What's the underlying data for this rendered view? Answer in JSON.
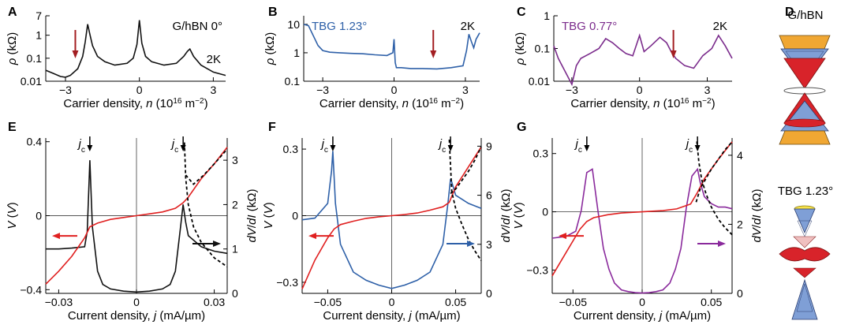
{
  "chart_data": [
    {
      "panel": "A",
      "type": "line",
      "scale": "log",
      "label": "G/hBN 0°",
      "temperature": "2K",
      "xlabel": "Carrier density, n (10^16 m^-2)",
      "ylabel": "ρ (kΩ)",
      "xlim": [
        -3.8,
        3.5
      ],
      "ylim": [
        0.01,
        7
      ],
      "xticks": [
        {
          "v": -3,
          "t": "−3"
        },
        {
          "v": 0,
          "t": "0"
        },
        {
          "v": 3,
          "t": "3"
        }
      ],
      "yticks": [
        {
          "v": 0.01,
          "t": "0.01"
        },
        {
          "v": 0.1,
          "t": "0.1"
        },
        {
          "v": 1,
          "t": "1"
        },
        {
          "v": 7,
          "t": "7"
        }
      ],
      "color": "#111111",
      "series": [
        {
          "name": "G/hBN 0°",
          "x": [
            -3.8,
            -3.5,
            -3.2,
            -3.0,
            -2.8,
            -2.5,
            -2.3,
            -2.2,
            -2.1,
            -2.0,
            -1.9,
            -1.7,
            -1.4,
            -1.0,
            -0.5,
            -0.25,
            -0.1,
            0,
            0.1,
            0.25,
            0.5,
            1.0,
            1.5,
            1.8,
            1.95,
            2.05,
            2.2,
            2.5,
            3.0,
            3.5
          ],
          "y": [
            0.03,
            0.022,
            0.016,
            0.015,
            0.018,
            0.035,
            0.12,
            0.5,
            3.0,
            1.0,
            0.35,
            0.12,
            0.07,
            0.05,
            0.06,
            0.1,
            0.4,
            4.5,
            0.45,
            0.12,
            0.07,
            0.05,
            0.06,
            0.12,
            0.2,
            0.25,
            0.12,
            0.05,
            0.025,
            0.018
          ]
        }
      ],
      "arrows": [
        {
          "x": -2.6,
          "color": "#a31e22"
        }
      ]
    },
    {
      "panel": "B",
      "type": "line",
      "scale": "log",
      "label": "TBG 1.23°",
      "temperature": "2K",
      "xlabel": "Carrier density, n (10^16 m^-2)",
      "ylabel": "ρ (kΩ)",
      "xlim": [
        -3.8,
        3.6
      ],
      "ylim": [
        0.1,
        20
      ],
      "xticks": [
        {
          "v": -3,
          "t": "−3"
        },
        {
          "v": 0,
          "t": "0"
        },
        {
          "v": 3,
          "t": "3"
        }
      ],
      "yticks": [
        {
          "v": 0.1,
          "t": "0.1"
        },
        {
          "v": 1,
          "t": "1"
        },
        {
          "v": 10,
          "t": "10"
        }
      ],
      "color": "#2e60a8",
      "series": [
        {
          "name": "TBG 1.23°",
          "x": [
            -3.8,
            -3.6,
            -3.4,
            -3.2,
            -3.0,
            -2.7,
            -2.3,
            -1.8,
            -1.3,
            -0.8,
            -0.3,
            -0.05,
            0,
            0.05,
            0.1,
            0.3,
            0.7,
            1.2,
            1.8,
            2.4,
            2.9,
            3.05,
            3.15,
            3.25,
            3.35,
            3.45,
            3.6
          ],
          "y": [
            10,
            9,
            4,
            1.8,
            1.2,
            1.05,
            1.0,
            0.95,
            0.92,
            0.85,
            0.8,
            1.0,
            3.0,
            0.45,
            0.3,
            0.3,
            0.28,
            0.28,
            0.27,
            0.3,
            0.35,
            1.2,
            4.5,
            2.5,
            1.5,
            3.0,
            5.0
          ]
        }
      ],
      "arrows": [
        {
          "x": 1.65,
          "color": "#a31e22"
        }
      ]
    },
    {
      "panel": "C",
      "type": "line",
      "scale": "log",
      "label": "TBG 0.77°",
      "temperature": "2K",
      "xlabel": "Carrier density, n (10^16 m^-2)",
      "ylabel": "ρ (kΩ)",
      "xlim": [
        -3.8,
        4.1
      ],
      "ylim": [
        0.01,
        1
      ],
      "xticks": [
        {
          "v": -3,
          "t": "−3"
        },
        {
          "v": 0,
          "t": "0"
        },
        {
          "v": 3,
          "t": "3"
        }
      ],
      "yticks": [
        {
          "v": 0.01,
          "t": "0.01"
        },
        {
          "v": 0.1,
          "t": "0.1"
        },
        {
          "v": 1,
          "t": "1"
        }
      ],
      "color": "#7b2c8c",
      "series": [
        {
          "name": "TBG 0.77°",
          "x": [
            -3.8,
            -3.6,
            -3.3,
            -3.0,
            -2.8,
            -2.6,
            -2.2,
            -1.8,
            -1.5,
            -1.2,
            -0.9,
            -0.6,
            -0.3,
            0,
            0.2,
            0.5,
            0.9,
            1.2,
            1.4,
            1.6,
            2.0,
            2.4,
            2.8,
            3.2,
            3.5,
            3.8,
            4.1
          ],
          "y": [
            0.12,
            0.05,
            0.02,
            0.008,
            0.03,
            0.05,
            0.07,
            0.1,
            0.2,
            0.15,
            0.1,
            0.07,
            0.06,
            0.25,
            0.08,
            0.12,
            0.22,
            0.15,
            0.08,
            0.05,
            0.03,
            0.025,
            0.06,
            0.1,
            0.25,
            0.12,
            0.05
          ]
        }
      ],
      "arrows": [
        {
          "x": 1.5,
          "color": "#a31e22"
        }
      ]
    },
    {
      "panel": "E",
      "type": "line",
      "dual_axis": true,
      "xlabel": "Current density, j (mA/µm)",
      "ylabel": "V (V)",
      "ylabel2": "dV/dI (kΩ)",
      "xlim": [
        -0.035,
        0.035
      ],
      "ylim": [
        -0.42,
        0.42
      ],
      "ylim2": [
        0,
        3.5
      ],
      "xticks": [
        {
          "v": -0.03,
          "t": "−0.03"
        },
        {
          "v": 0,
          "t": "0"
        },
        {
          "v": 0.03,
          "t": "0.03"
        }
      ],
      "yticks": [
        {
          "v": -0.4,
          "t": "−0.4"
        },
        {
          "v": 0,
          "t": "0"
        },
        {
          "v": 0.4,
          "t": "0.4"
        }
      ],
      "y2ticks": [
        {
          "v": 0,
          "t": "0"
        },
        {
          "v": 1,
          "t": "1"
        },
        {
          "v": 2,
          "t": "2"
        },
        {
          "v": 3,
          "t": "3"
        }
      ],
      "jc_label": "j",
      "jc_sub": "c",
      "jc_positions": [
        -0.018,
        0.018
      ],
      "v_curve": {
        "color": "#e02020",
        "x": [
          -0.035,
          -0.03,
          -0.025,
          -0.02,
          -0.018,
          -0.015,
          -0.01,
          -0.005,
          0,
          0.005,
          0.01,
          0.015,
          0.018,
          0.02,
          0.025,
          0.03,
          0.035
        ],
        "y": [
          -0.37,
          -0.3,
          -0.22,
          -0.12,
          -0.06,
          -0.04,
          -0.02,
          -0.01,
          0,
          0.01,
          0.02,
          0.04,
          0.07,
          0.1,
          0.2,
          0.28,
          0.37
        ]
      },
      "didv_curve": {
        "color": "#111111",
        "x": [
          -0.035,
          -0.03,
          -0.025,
          -0.02,
          -0.019,
          -0.018,
          -0.017,
          -0.015,
          -0.013,
          -0.01,
          -0.005,
          0,
          0.005,
          0.01,
          0.013,
          0.015,
          0.017,
          0.018,
          0.019,
          0.02,
          0.025,
          0.03,
          0.035
        ],
        "y": [
          1.0,
          1.0,
          1.02,
          1.05,
          1.4,
          3.0,
          1.5,
          0.5,
          0.2,
          0.1,
          0.05,
          0.03,
          0.05,
          0.1,
          0.2,
          0.5,
          1.5,
          2.0,
          1.6,
          1.3,
          1.05,
          0.95,
          0.9
        ]
      },
      "fit_curves": [
        {
          "x": [
            0.019,
            0.022,
            0.026,
            0.03,
            0.035
          ],
          "y": [
            0.22,
            0.17,
            0.22,
            0.28,
            0.36
          ]
        },
        {
          "x": [
            0.0185,
            0.019,
            0.02,
            0.022,
            0.025,
            0.03,
            0.035
          ],
          "y": [
            3.4,
            2.6,
            2.0,
            1.5,
            1.15,
            0.8,
            0.6
          ],
          "axis": "y2"
        }
      ],
      "side_arrows": [
        {
          "dir": "left",
          "color": "#e02020"
        },
        {
          "dir": "right",
          "color": "#111111"
        }
      ]
    },
    {
      "panel": "F",
      "type": "line",
      "dual_axis": true,
      "xlabel": "Current density, j (mA/µm)",
      "ylabel": "V (V)",
      "ylabel2": "dV/dI (kΩ)",
      "xlim": [
        -0.07,
        0.07
      ],
      "ylim": [
        -0.35,
        0.35
      ],
      "ylim2": [
        0,
        9.5
      ],
      "xticks": [
        {
          "v": -0.05,
          "t": "−0.05"
        },
        {
          "v": 0,
          "t": "0"
        },
        {
          "v": 0.05,
          "t": "0.05"
        }
      ],
      "yticks": [
        {
          "v": -0.3,
          "t": "−0.3"
        },
        {
          "v": 0,
          "t": "0"
        },
        {
          "v": 0.3,
          "t": "0.3"
        }
      ],
      "y2ticks": [
        {
          "v": 0,
          "t": "0"
        },
        {
          "v": 3,
          "t": "3"
        },
        {
          "v": 6,
          "t": "6"
        },
        {
          "v": 9,
          "t": "9"
        }
      ],
      "jc_label": "j",
      "jc_sub": "c",
      "jc_positions": [
        -0.046,
        0.046
      ],
      "v_curve": {
        "color": "#e02020",
        "x": [
          -0.07,
          -0.06,
          -0.05,
          -0.045,
          -0.04,
          -0.03,
          -0.02,
          -0.01,
          0,
          0.01,
          0.02,
          0.03,
          0.04,
          0.045,
          0.05,
          0.06,
          0.07
        ],
        "y": [
          -0.33,
          -0.2,
          -0.1,
          -0.06,
          -0.04,
          -0.025,
          -0.012,
          -0.005,
          0,
          0.005,
          0.012,
          0.025,
          0.04,
          0.06,
          0.13,
          0.22,
          0.31
        ]
      },
      "didv_curve": {
        "color": "#2e60a8",
        "x": [
          -0.07,
          -0.06,
          -0.05,
          -0.047,
          -0.046,
          -0.044,
          -0.04,
          -0.03,
          -0.02,
          -0.01,
          0,
          0.01,
          0.02,
          0.03,
          0.04,
          0.044,
          0.046,
          0.047,
          0.05,
          0.06,
          0.07
        ],
        "y": [
          4.5,
          4.6,
          5.5,
          7.5,
          8.7,
          5.5,
          3.0,
          1.3,
          0.8,
          0.5,
          0.3,
          0.5,
          0.8,
          1.3,
          3.0,
          5.5,
          7.0,
          6.8,
          6.0,
          5.5,
          5.2
        ]
      },
      "fit_curves": [
        {
          "x": [
            0.046,
            0.05,
            0.055,
            0.06,
            0.065,
            0.07
          ],
          "y": [
            0.1,
            0.12,
            0.16,
            0.2,
            0.25,
            0.31
          ]
        },
        {
          "x": [
            0.045,
            0.047,
            0.05,
            0.055,
            0.06,
            0.065,
            0.07
          ],
          "y": [
            9.4,
            6.2,
            5.2,
            4.2,
            3.3,
            2.6,
            2.0
          ],
          "axis": "y2"
        }
      ],
      "side_arrows": [
        {
          "dir": "left",
          "color": "#e02020"
        },
        {
          "dir": "right",
          "color": "#2e60a8"
        }
      ]
    },
    {
      "panel": "G",
      "type": "line",
      "dual_axis": true,
      "xlabel": "Current density, j (mA/µm)",
      "ylabel": "V (V)",
      "ylabel2": "dV/dI (kΩ)",
      "xlim": [
        -0.065,
        0.065
      ],
      "ylim": [
        -0.42,
        0.38
      ],
      "ylim2": [
        0,
        4.5
      ],
      "xticks": [
        {
          "v": -0.05,
          "t": "−0.05"
        },
        {
          "v": 0,
          "t": "0"
        },
        {
          "v": 0.05,
          "t": "0.05"
        }
      ],
      "yticks": [
        {
          "v": -0.3,
          "t": "−0.3"
        },
        {
          "v": 0,
          "t": "0"
        },
        {
          "v": 0.3,
          "t": "0.3"
        }
      ],
      "y2ticks": [
        {
          "v": 0,
          "t": "0"
        },
        {
          "v": 2,
          "t": "2"
        },
        {
          "v": 4,
          "t": "4"
        }
      ],
      "jc_label": "j",
      "jc_sub": "c",
      "jc_positions": [
        -0.04,
        0.04
      ],
      "v_curve": {
        "color": "#e02020",
        "x": [
          -0.065,
          -0.055,
          -0.045,
          -0.04,
          -0.035,
          -0.025,
          -0.015,
          -0.005,
          0,
          0.005,
          0.015,
          0.025,
          0.035,
          0.04,
          0.045,
          0.055,
          0.065
        ],
        "y": [
          -0.33,
          -0.21,
          -0.09,
          -0.05,
          -0.03,
          -0.015,
          -0.006,
          -0.002,
          0,
          0.002,
          0.006,
          0.015,
          0.04,
          0.1,
          0.17,
          0.27,
          0.36
        ]
      },
      "didv_curve": {
        "color": "#8a2a9c",
        "x": [
          -0.065,
          -0.055,
          -0.048,
          -0.044,
          -0.04,
          -0.036,
          -0.032,
          -0.028,
          -0.024,
          -0.02,
          -0.015,
          -0.01,
          -0.005,
          0,
          0.005,
          0.01,
          0.015,
          0.02,
          0.024,
          0.028,
          0.032,
          0.036,
          0.04,
          0.042,
          0.045,
          0.05,
          0.055,
          0.06,
          0.065
        ],
        "y": [
          1.6,
          1.65,
          1.8,
          2.4,
          3.5,
          3.6,
          2.4,
          1.3,
          0.7,
          0.3,
          0.1,
          0.05,
          0.02,
          0.01,
          0.02,
          0.05,
          0.1,
          0.3,
          0.7,
          1.3,
          2.5,
          3.4,
          3.6,
          3.2,
          2.8,
          2.6,
          2.5,
          2.5,
          2.45
        ]
      },
      "fit_curves": [
        {
          "x": [
            0.039,
            0.042,
            0.046,
            0.05,
            0.055,
            0.06,
            0.065
          ],
          "y": [
            0.05,
            0.12,
            0.17,
            0.22,
            0.27,
            0.32,
            0.36
          ]
        },
        {
          "x": [
            0.0395,
            0.041,
            0.043,
            0.046,
            0.05,
            0.055,
            0.06,
            0.065
          ],
          "y": [
            4.4,
            3.8,
            3.3,
            2.9,
            2.5,
            2.15,
            1.9,
            1.7
          ],
          "axis": "y2"
        }
      ],
      "side_arrows": [
        {
          "dir": "left",
          "color": "#e02020"
        },
        {
          "dir": "right",
          "color": "#8a2a9c"
        }
      ]
    }
  ],
  "panel_d": {
    "letter": "D",
    "top_label": "G/hBN",
    "bottom_label": "TBG 1.23°",
    "colors": {
      "red": "#d8232a",
      "blue": "#7f9fd6",
      "orange": "#f0a733",
      "yellow": "#f7e24b"
    }
  },
  "letters": [
    "A",
    "B",
    "C",
    "E",
    "F",
    "G"
  ]
}
